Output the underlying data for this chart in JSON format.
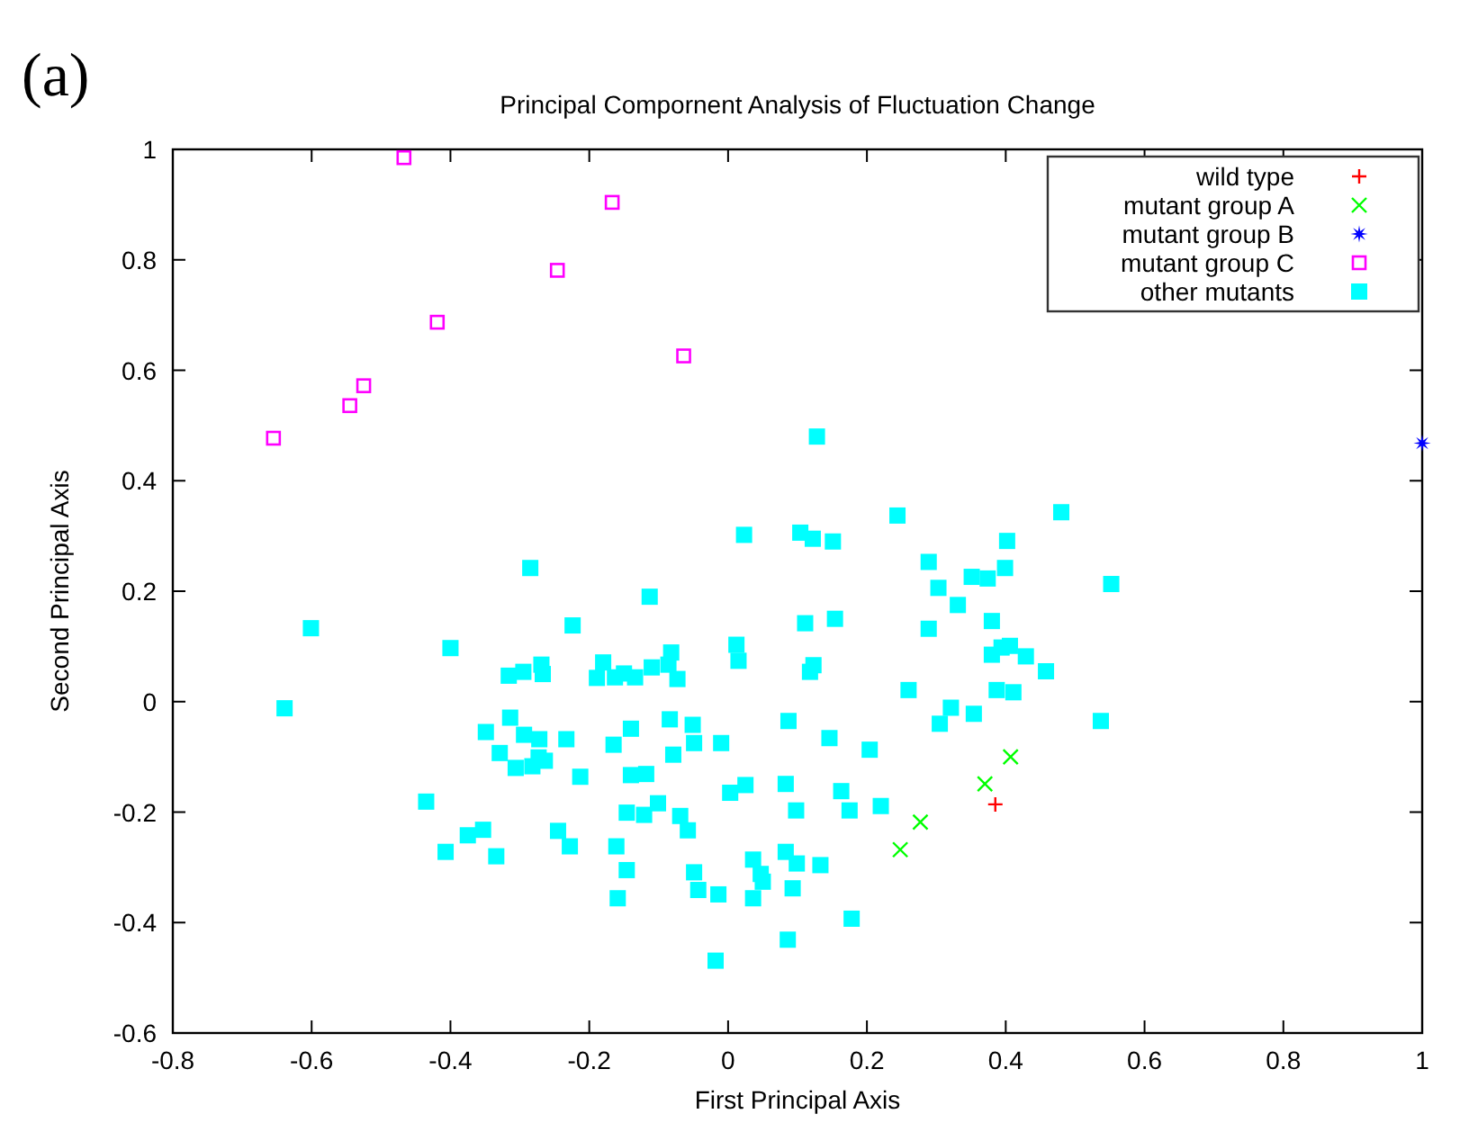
{
  "chart_data": {
    "type": "scatter",
    "title": "Principal Compornent Analysis of Fluctuation Change",
    "xlabel": "First Principal Axis",
    "ylabel": "Second Principal Axis",
    "annotations": [
      "(a)"
    ],
    "xlim": [
      -0.8,
      1
    ],
    "ylim": [
      -0.6,
      1
    ],
    "xticks": [
      -0.8,
      -0.6,
      -0.4,
      -0.2,
      0,
      0.2,
      0.4,
      0.6,
      0.8,
      1
    ],
    "yticks": [
      -0.6,
      -0.4,
      -0.2,
      0,
      0.2,
      0.4,
      0.6,
      0.8,
      1
    ],
    "grid": false,
    "legend": "top right",
    "series": [
      {
        "name": "wild type",
        "color": "#ff0000",
        "marker": "plus",
        "x": [
          0.385
        ],
        "values": [
          -0.186
        ]
      },
      {
        "name": "mutant group A",
        "color": "#00ff00",
        "marker": "cross",
        "x": [
          0.407,
          0.37,
          0.277,
          0.248
        ],
        "values": [
          -0.1,
          -0.149,
          -0.218,
          -0.268
        ]
      },
      {
        "name": "mutant group B",
        "color": "#0000ff",
        "marker": "star",
        "x": [
          1.0
        ],
        "values": [
          0.468
        ]
      },
      {
        "name": "mutant group C",
        "color": "#ff00ff",
        "marker": "square-open",
        "x": [
          -0.467,
          -0.167,
          -0.246,
          -0.419,
          -0.064,
          -0.525,
          -0.545,
          -0.655
        ],
        "values": [
          0.985,
          0.904,
          0.781,
          0.687,
          0.626,
          0.572,
          0.536,
          0.477
        ]
      },
      {
        "name": "other mutants",
        "color": "#00ffff",
        "marker": "square",
        "x": [
          -0.285,
          -0.113,
          -0.224,
          -0.601,
          -0.4,
          -0.082,
          -0.269,
          -0.18,
          -0.11,
          -0.316,
          -0.295,
          -0.267,
          -0.189,
          -0.163,
          -0.15,
          -0.134,
          -0.086,
          -0.073,
          -0.639,
          -0.314,
          -0.349,
          -0.294,
          -0.272,
          -0.233,
          -0.14,
          -0.084,
          -0.165,
          -0.329,
          -0.273,
          -0.264,
          -0.306,
          -0.282,
          -0.213,
          -0.079,
          -0.14,
          -0.118,
          -0.435,
          -0.101,
          -0.146,
          -0.121,
          -0.069,
          -0.353,
          -0.375,
          -0.245,
          -0.228,
          -0.161,
          -0.407,
          -0.334,
          -0.146,
          -0.159,
          0.128,
          0.244,
          0.48,
          0.023,
          0.104,
          0.122,
          0.151,
          0.402,
          0.289,
          0.399,
          0.351,
          0.374,
          0.303,
          0.331,
          0.38,
          0.111,
          0.154,
          0.289,
          0.012,
          0.015,
          0.123,
          0.118,
          0.38,
          0.394,
          0.406,
          0.429,
          0.458,
          0.26,
          0.387,
          0.411,
          0.321,
          0.354,
          0.305,
          -0.051,
          -0.049,
          -0.01,
          0.087,
          0.146,
          0.204,
          0.003,
          0.025,
          0.083,
          0.098,
          0.163,
          0.175,
          0.22,
          -0.058,
          0.036,
          0.047,
          0.05,
          0.083,
          0.099,
          0.133,
          -0.049,
          -0.043,
          -0.014,
          0.036,
          0.093,
          0.178,
          0.086,
          -0.018,
          0.552,
          0.537
        ],
        "values": [
          0.242,
          0.19,
          0.138,
          0.133,
          0.097,
          0.089,
          0.067,
          0.071,
          0.062,
          0.047,
          0.054,
          0.05,
          0.043,
          0.044,
          0.051,
          0.044,
          0.067,
          0.041,
          -0.012,
          -0.029,
          -0.055,
          -0.06,
          -0.068,
          -0.068,
          -0.049,
          -0.032,
          -0.078,
          -0.093,
          -0.101,
          -0.107,
          -0.12,
          -0.117,
          -0.136,
          -0.096,
          -0.133,
          -0.131,
          -0.181,
          -0.184,
          -0.201,
          -0.205,
          -0.207,
          -0.232,
          -0.242,
          -0.234,
          -0.262,
          -0.262,
          -0.272,
          -0.28,
          -0.305,
          -0.356,
          0.48,
          0.337,
          0.343,
          0.302,
          0.306,
          0.295,
          0.29,
          0.291,
          0.253,
          0.242,
          0.226,
          0.223,
          0.206,
          0.175,
          0.146,
          0.142,
          0.15,
          0.132,
          0.103,
          0.074,
          0.066,
          0.054,
          0.085,
          0.098,
          0.101,
          0.082,
          0.055,
          0.021,
          0.021,
          0.017,
          -0.011,
          -0.022,
          -0.04,
          -0.042,
          -0.075,
          -0.075,
          -0.035,
          -0.066,
          -0.087,
          -0.165,
          -0.151,
          -0.149,
          -0.197,
          -0.162,
          -0.197,
          -0.189,
          -0.233,
          -0.286,
          -0.312,
          -0.326,
          -0.272,
          -0.293,
          -0.296,
          -0.309,
          -0.341,
          -0.349,
          -0.356,
          -0.338,
          -0.393,
          -0.431,
          -0.469,
          0.213,
          -0.035
        ]
      }
    ]
  }
}
